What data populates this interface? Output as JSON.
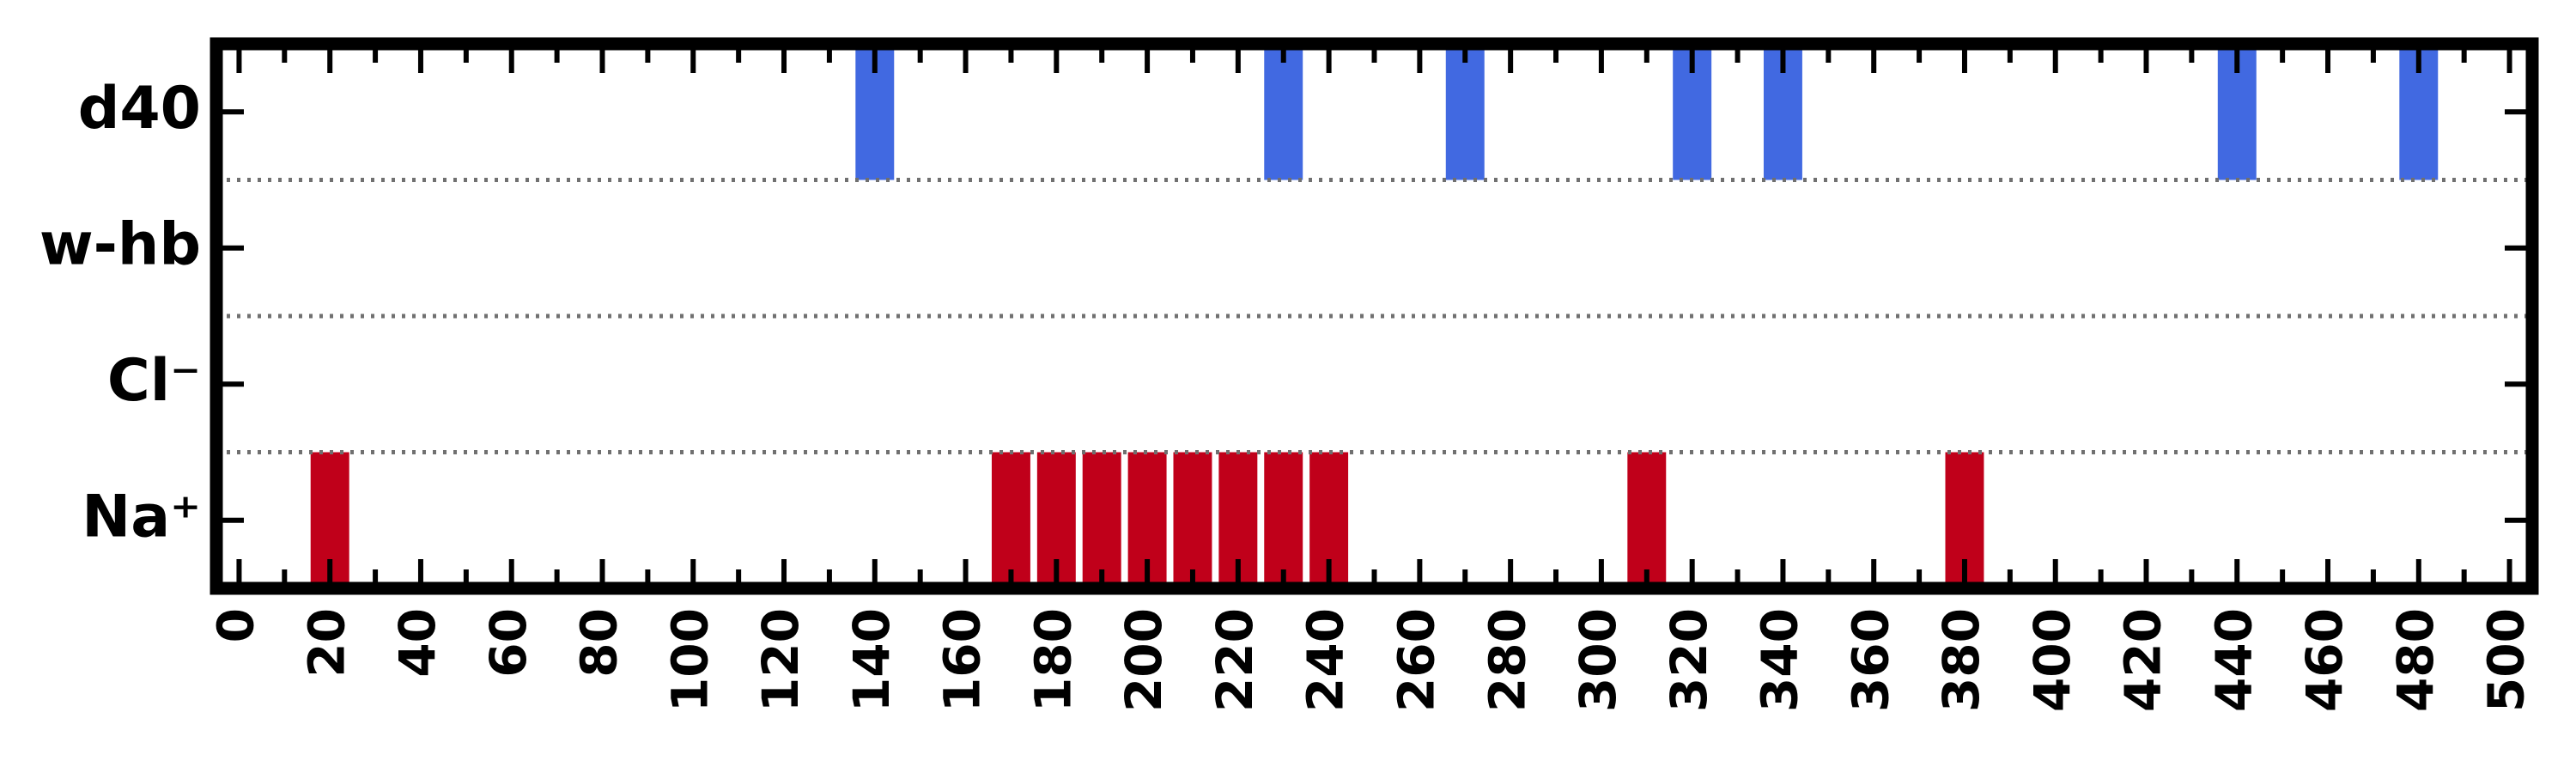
{
  "chart_data": {
    "type": "bar",
    "orientation": "event-raster",
    "xlim": [
      -5,
      505
    ],
    "xticks": [
      0,
      20,
      40,
      60,
      80,
      100,
      120,
      140,
      160,
      180,
      200,
      220,
      240,
      260,
      280,
      300,
      320,
      340,
      360,
      380,
      400,
      420,
      440,
      460,
      480,
      500
    ],
    "xtick_labels": [
      "0",
      "20",
      "40",
      "60",
      "80",
      "100",
      "120",
      "140",
      "160",
      "180",
      "200",
      "220",
      "240",
      "260",
      "280",
      "300",
      "320",
      "340",
      "360",
      "380",
      "400",
      "420",
      "440",
      "460",
      "480",
      "500"
    ],
    "minor_tick_step": 10,
    "rows": [
      {
        "label": "d40",
        "color": "#4169e1",
        "events": [
          140,
          230,
          270,
          320,
          340,
          440,
          480
        ]
      },
      {
        "label": "w-hb",
        "color": "#4169e1",
        "events": []
      },
      {
        "label": "Cl⁻",
        "color": "#c0001a",
        "events": []
      },
      {
        "label": "Na⁺",
        "color": "#c0001a",
        "events": [
          20,
          170,
          180,
          190,
          200,
          210,
          220,
          230,
          240,
          310,
          380
        ]
      }
    ],
    "bar_width": 8.5,
    "row_separators": "dotted",
    "grid": false,
    "legend": "none"
  }
}
